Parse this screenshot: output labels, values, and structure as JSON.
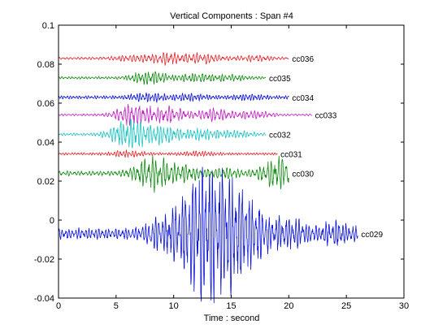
{
  "chart_data": {
    "type": "line",
    "title": "Vertical Components : Span #4",
    "xlabel": "Time : second",
    "ylabel": "",
    "xlim": [
      0,
      30
    ],
    "ylim": [
      -0.04,
      0.1
    ],
    "xticks": [
      0,
      5,
      10,
      15,
      20,
      25,
      30
    ],
    "yticks": [
      -0.04,
      -0.02,
      0,
      0.02,
      0.04,
      0.06,
      0.08,
      0.1
    ],
    "ytick_labels": [
      "-0.04",
      "-0.02",
      "0",
      "0.02",
      "0.04",
      "0.06",
      "0.08",
      "0.1"
    ],
    "grid": false,
    "series": [
      {
        "name": "cc036",
        "color": "#e0262b",
        "offset": 0.083,
        "t_start": 0,
        "t_end": 20,
        "bursts": [
          [
            6.3,
            0.001
          ],
          [
            9.3,
            0.0022
          ],
          [
            12.5,
            0.0018
          ],
          [
            17.0,
            0.001
          ]
        ],
        "floor": 0.0005
      },
      {
        "name": "cc035",
        "color": "#118a11",
        "offset": 0.073,
        "t_start": 0,
        "t_end": 18,
        "bursts": [
          [
            7.9,
            0.0028
          ],
          [
            12.0,
            0.0015
          ],
          [
            15.0,
            0.001
          ]
        ],
        "floor": 0.0005
      },
      {
        "name": "cc034",
        "color": "#0a12d6",
        "offset": 0.063,
        "t_start": 0,
        "t_end": 20,
        "bursts": [
          [
            7.8,
            0.0014
          ],
          [
            11.5,
            0.001
          ],
          [
            16.5,
            0.0008
          ]
        ],
        "floor": 0.0007
      },
      {
        "name": "cc033",
        "color": "#c21fc2",
        "offset": 0.054,
        "t_start": 0,
        "t_end": 22,
        "bursts": [
          [
            6.5,
            0.0045
          ],
          [
            9.5,
            0.003
          ],
          [
            13.5,
            0.0025
          ],
          [
            17.0,
            0.0015
          ]
        ],
        "floor": 0.0004
      },
      {
        "name": "cc032",
        "color": "#1ec3c3",
        "offset": 0.044,
        "t_start": 0,
        "t_end": 18,
        "bursts": [
          [
            6.1,
            0.006
          ],
          [
            9.0,
            0.0035
          ],
          [
            12.5,
            0.002
          ],
          [
            15.5,
            0.0012
          ]
        ],
        "floor": 0.0005
      },
      {
        "name": "cc031",
        "color": "#e0262b",
        "offset": 0.034,
        "t_start": 0,
        "t_end": 19,
        "bursts": [
          [
            6.0,
            0.001
          ],
          [
            12.0,
            0.0008
          ]
        ],
        "floor": 0.0005
      },
      {
        "name": "cc030",
        "color": "#118a11",
        "offset": 0.024,
        "t_start": 0,
        "t_end": 20,
        "bursts": [
          [
            8.2,
            0.006
          ],
          [
            11.0,
            0.0025
          ],
          [
            14.5,
            0.0015
          ],
          [
            19.2,
            0.006
          ]
        ],
        "floor": 0.001
      },
      {
        "name": "cc029",
        "color": "#0a12d6",
        "offset": -0.007,
        "t_start": 0,
        "t_end": 26,
        "bursts": [
          [
            9.5,
            0.007
          ],
          [
            12.4,
            0.026
          ],
          [
            14.7,
            0.017
          ],
          [
            16.8,
            0.009
          ],
          [
            20.0,
            0.005
          ],
          [
            24.0,
            0.003
          ]
        ],
        "floor": 0.0022
      }
    ]
  }
}
